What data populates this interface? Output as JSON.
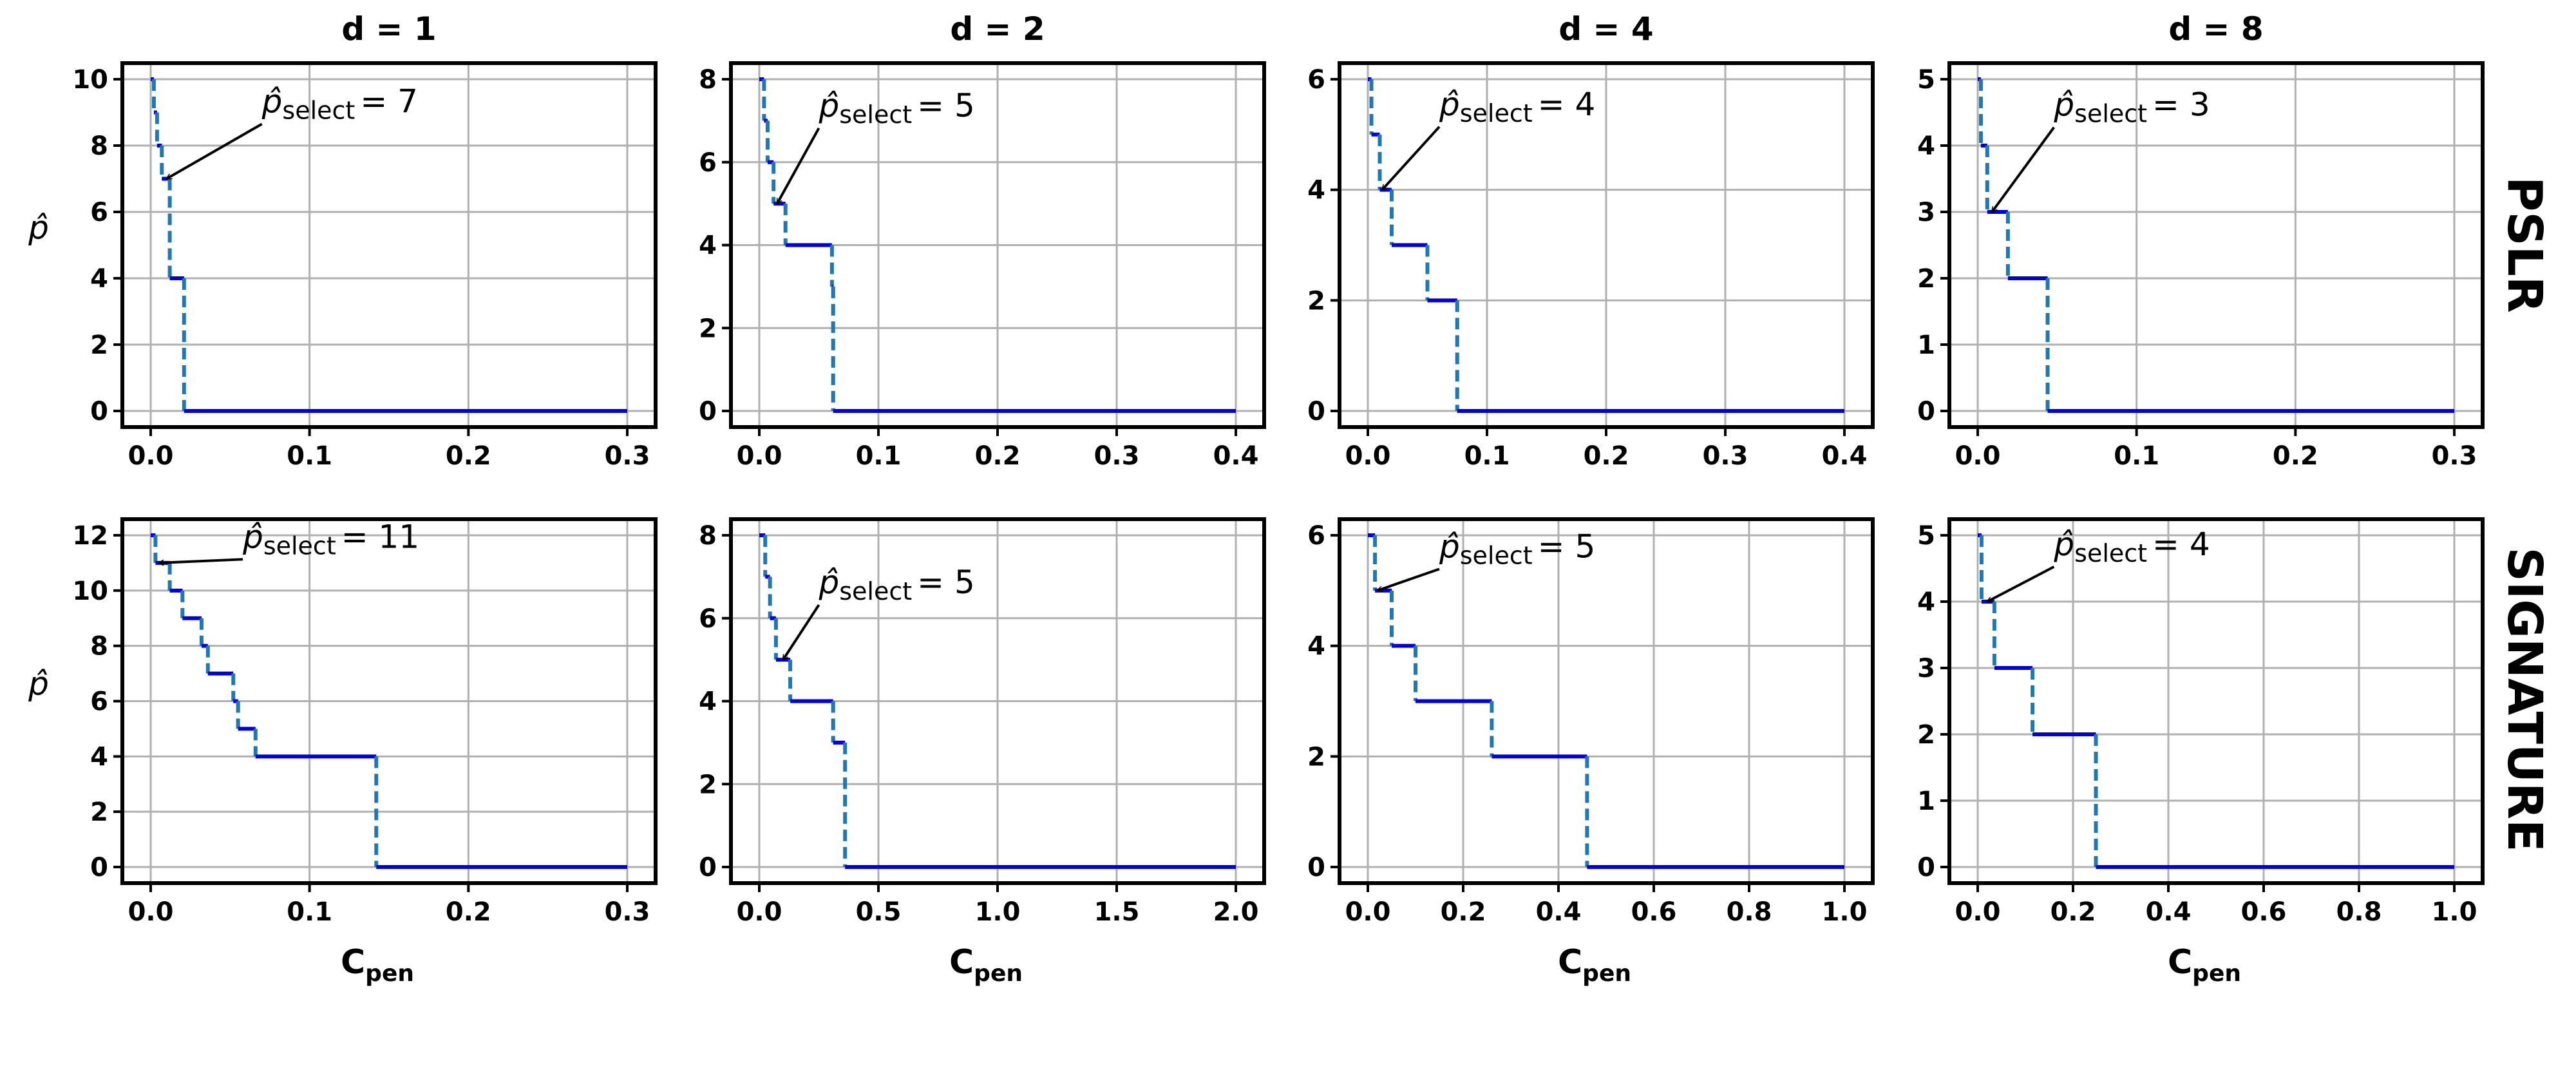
{
  "figure": {
    "row_labels": [
      "PSLR",
      "SIGNATURE"
    ],
    "col_titles": [
      "d = 1",
      "d = 2",
      "d = 4",
      "d = 8"
    ],
    "xlabel_main": "C",
    "xlabel_sub": "pen",
    "ylabel": "p̂",
    "annotation_main": "p̂",
    "annotation_sub": "select",
    "step_color": "#0000dd",
    "jump_color": "#1f77b4"
  },
  "chart_data": [
    {
      "type": "line",
      "row": "PSLR",
      "col": "d = 1",
      "title": "d = 1",
      "xlabel": "",
      "ylabel": "p̂",
      "xlim": [
        0,
        0.3
      ],
      "ylim": [
        0,
        10
      ],
      "xticks": [
        0.0,
        0.1,
        0.2,
        0.3
      ],
      "xtick_labels": [
        "0.0",
        "0.1",
        "0.2",
        "0.3"
      ],
      "yticks": [
        0,
        2,
        4,
        6,
        8,
        10
      ],
      "ytick_labels": [
        "0",
        "2",
        "4",
        "6",
        "8",
        "10"
      ],
      "grid": true,
      "steps": [
        [
          0.0,
          0.002,
          10
        ],
        [
          0.002,
          0.004,
          9
        ],
        [
          0.004,
          0.007,
          8
        ],
        [
          0.007,
          0.012,
          7
        ],
        [
          0.012,
          0.021,
          4
        ],
        [
          0.021,
          0.3,
          0
        ]
      ],
      "annotation": {
        "value": 7,
        "text": "= 7",
        "point": [
          0.01,
          7
        ],
        "text_at": [
          0.07,
          9.0
        ]
      }
    },
    {
      "type": "line",
      "row": "PSLR",
      "col": "d = 2",
      "title": "d = 2",
      "xlabel": "",
      "ylabel": "",
      "xlim": [
        0,
        0.4
      ],
      "ylim": [
        0,
        8
      ],
      "xticks": [
        0.0,
        0.1,
        0.2,
        0.3,
        0.4
      ],
      "xtick_labels": [
        "0.0",
        "0.1",
        "0.2",
        "0.3",
        "0.4"
      ],
      "yticks": [
        0,
        2,
        4,
        6,
        8
      ],
      "ytick_labels": [
        "0",
        "2",
        "4",
        "6",
        "8"
      ],
      "grid": true,
      "steps": [
        [
          0.0,
          0.004,
          8
        ],
        [
          0.004,
          0.007,
          7
        ],
        [
          0.007,
          0.012,
          6
        ],
        [
          0.012,
          0.022,
          5
        ],
        [
          0.022,
          0.061,
          4
        ],
        [
          0.061,
          0.062,
          3
        ],
        [
          0.062,
          0.4,
          0
        ]
      ],
      "annotation": {
        "value": 5,
        "text": "= 5",
        "point": [
          0.015,
          5
        ],
        "text_at": [
          0.05,
          7.1
        ]
      }
    },
    {
      "type": "line",
      "row": "PSLR",
      "col": "d = 4",
      "title": "d = 4",
      "xlabel": "",
      "ylabel": "",
      "xlim": [
        0,
        0.4
      ],
      "ylim": [
        0,
        6
      ],
      "xticks": [
        0.0,
        0.1,
        0.2,
        0.3,
        0.4
      ],
      "xtick_labels": [
        "0.0",
        "0.1",
        "0.2",
        "0.3",
        "0.4"
      ],
      "yticks": [
        0,
        2,
        4,
        6
      ],
      "ytick_labels": [
        "0",
        "2",
        "4",
        "6"
      ],
      "grid": true,
      "steps": [
        [
          0.0,
          0.003,
          6
        ],
        [
          0.003,
          0.01,
          5
        ],
        [
          0.01,
          0.02,
          4
        ],
        [
          0.02,
          0.05,
          3
        ],
        [
          0.05,
          0.075,
          2
        ],
        [
          0.075,
          0.4,
          0
        ]
      ],
      "annotation": {
        "value": 4,
        "text": "= 4",
        "point": [
          0.012,
          4
        ],
        "text_at": [
          0.06,
          5.35
        ]
      }
    },
    {
      "type": "line",
      "row": "PSLR",
      "col": "d = 8",
      "title": "d = 8",
      "xlabel": "",
      "ylabel": "",
      "xlim": [
        0,
        0.3
      ],
      "ylim": [
        0,
        5
      ],
      "xticks": [
        0.0,
        0.1,
        0.2,
        0.3
      ],
      "xtick_labels": [
        "0.0",
        "0.1",
        "0.2",
        "0.3"
      ],
      "yticks": [
        0,
        1,
        2,
        3,
        4,
        5
      ],
      "ytick_labels": [
        "0",
        "1",
        "2",
        "3",
        "4",
        "5"
      ],
      "grid": true,
      "steps": [
        [
          0.0,
          0.002,
          5
        ],
        [
          0.002,
          0.006,
          4
        ],
        [
          0.006,
          0.019,
          3
        ],
        [
          0.019,
          0.044,
          2
        ],
        [
          0.044,
          0.3,
          0
        ]
      ],
      "annotation": {
        "value": 3,
        "text": "= 3",
        "point": [
          0.009,
          3
        ],
        "text_at": [
          0.048,
          4.45
        ]
      }
    },
    {
      "type": "line",
      "row": "SIGNATURE",
      "col": "d = 1",
      "title": "",
      "xlabel": "Cpen",
      "ylabel": "p̂",
      "xlim": [
        0,
        0.3
      ],
      "ylim": [
        0,
        12
      ],
      "xticks": [
        0.0,
        0.1,
        0.2,
        0.3
      ],
      "xtick_labels": [
        "0.0",
        "0.1",
        "0.2",
        "0.3"
      ],
      "yticks": [
        0,
        2,
        4,
        6,
        8,
        10,
        12
      ],
      "ytick_labels": [
        "0",
        "2",
        "4",
        "6",
        "8",
        "10",
        "12"
      ],
      "grid": true,
      "steps": [
        [
          0.0,
          0.003,
          12
        ],
        [
          0.003,
          0.012,
          11
        ],
        [
          0.012,
          0.02,
          10
        ],
        [
          0.02,
          0.032,
          9
        ],
        [
          0.032,
          0.036,
          8
        ],
        [
          0.036,
          0.052,
          7
        ],
        [
          0.052,
          0.055,
          6
        ],
        [
          0.055,
          0.066,
          5
        ],
        [
          0.066,
          0.142,
          4
        ],
        [
          0.142,
          0.3,
          0
        ]
      ],
      "annotation": {
        "value": 11,
        "text": "= 11",
        "point": [
          0.005,
          11
        ],
        "text_at": [
          0.058,
          11.55
        ]
      }
    },
    {
      "type": "line",
      "row": "SIGNATURE",
      "col": "d = 2",
      "title": "",
      "xlabel": "Cpen",
      "ylabel": "",
      "xlim": [
        0,
        2.0
      ],
      "ylim": [
        0,
        8
      ],
      "xticks": [
        0.0,
        0.5,
        1.0,
        1.5,
        2.0
      ],
      "xtick_labels": [
        "0.0",
        "0.5",
        "1.0",
        "1.5",
        "2.0"
      ],
      "yticks": [
        0,
        2,
        4,
        6,
        8
      ],
      "ytick_labels": [
        "0",
        "2",
        "4",
        "6",
        "8"
      ],
      "grid": true,
      "steps": [
        [
          0.0,
          0.025,
          8
        ],
        [
          0.025,
          0.045,
          7
        ],
        [
          0.045,
          0.07,
          6
        ],
        [
          0.07,
          0.13,
          5
        ],
        [
          0.13,
          0.31,
          4
        ],
        [
          0.31,
          0.36,
          3
        ],
        [
          0.36,
          2.0,
          0
        ]
      ],
      "annotation": {
        "value": 5,
        "text": "= 5",
        "point": [
          0.1,
          5
        ],
        "text_at": [
          0.25,
          6.6
        ]
      }
    },
    {
      "type": "line",
      "row": "SIGNATURE",
      "col": "d = 4",
      "title": "",
      "xlabel": "Cpen",
      "ylabel": "",
      "xlim": [
        0,
        1.0
      ],
      "ylim": [
        0,
        6
      ],
      "xticks": [
        0.0,
        0.2,
        0.4,
        0.6,
        0.8,
        1.0
      ],
      "xtick_labels": [
        "0.0",
        "0.2",
        "0.4",
        "0.6",
        "0.8",
        "1.0"
      ],
      "yticks": [
        0,
        2,
        4,
        6
      ],
      "ytick_labels": [
        "0",
        "2",
        "4",
        "6"
      ],
      "grid": true,
      "steps": [
        [
          0.0,
          0.015,
          6
        ],
        [
          0.015,
          0.05,
          5
        ],
        [
          0.05,
          0.1,
          4
        ],
        [
          0.1,
          0.26,
          3
        ],
        [
          0.26,
          0.46,
          2
        ],
        [
          0.46,
          1.0,
          0
        ]
      ],
      "annotation": {
        "value": 5,
        "text": "= 5",
        "point": [
          0.02,
          5
        ],
        "text_at": [
          0.15,
          5.6
        ]
      }
    },
    {
      "type": "line",
      "row": "SIGNATURE",
      "col": "d = 8",
      "title": "",
      "xlabel": "Cpen",
      "ylabel": "",
      "xlim": [
        0,
        1.0
      ],
      "ylim": [
        0,
        5
      ],
      "xticks": [
        0.0,
        0.2,
        0.4,
        0.6,
        0.8,
        1.0
      ],
      "xtick_labels": [
        "0.0",
        "0.2",
        "0.4",
        "0.6",
        "0.8",
        "1.0"
      ],
      "yticks": [
        0,
        1,
        2,
        3,
        4,
        5
      ],
      "ytick_labels": [
        "0",
        "1",
        "2",
        "3",
        "4",
        "5"
      ],
      "grid": true,
      "steps": [
        [
          0.0,
          0.008,
          5
        ],
        [
          0.008,
          0.035,
          4
        ],
        [
          0.035,
          0.115,
          3
        ],
        [
          0.115,
          0.248,
          2
        ],
        [
          0.248,
          1.0,
          0
        ]
      ],
      "annotation": {
        "value": 4,
        "text": "= 4",
        "point": [
          0.02,
          4
        ],
        "text_at": [
          0.16,
          4.7
        ]
      }
    }
  ]
}
